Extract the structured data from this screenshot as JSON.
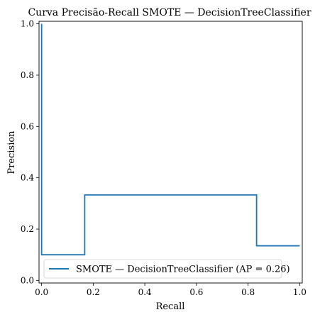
{
  "chart_data": {
    "type": "line",
    "title": "Curva Precisão-Recall SMOTE — DecisionTreeClassifier",
    "xlabel": "Recall",
    "ylabel": "Precision",
    "xlim": [
      -0.01,
      1.01
    ],
    "ylim": [
      -0.01,
      1.01
    ],
    "xticks": [
      0.0,
      0.2,
      0.4,
      0.6,
      0.8,
      1.0
    ],
    "xtick_labels": [
      "0.0",
      "0.2",
      "0.4",
      "0.6",
      "0.8",
      "1.0"
    ],
    "yticks": [
      0.0,
      0.2,
      0.4,
      0.6,
      0.8,
      1.0
    ],
    "ytick_labels": [
      "0.0",
      "0.2",
      "0.4",
      "0.6",
      "0.8",
      "1.0"
    ],
    "grid": false,
    "legend_position": "lower-left",
    "series": [
      {
        "name": "SMOTE — DecisionTreeClassifier (AP = 0.26)",
        "color": "#1f77b4",
        "step": "post",
        "points": [
          [
            0.0,
            1.0
          ],
          [
            0.0,
            0.1
          ],
          [
            0.167,
            0.1
          ],
          [
            0.167,
            0.333
          ],
          [
            0.833,
            0.333
          ],
          [
            0.833,
            0.135
          ],
          [
            1.0,
            0.135
          ]
        ]
      }
    ]
  }
}
